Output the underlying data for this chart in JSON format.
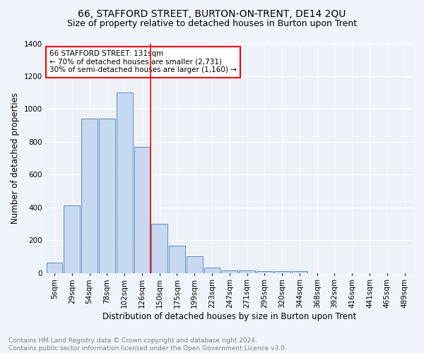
{
  "title1": "66, STAFFORD STREET, BURTON-ON-TRENT, DE14 2QU",
  "title2": "Size of property relative to detached houses in Burton upon Trent",
  "xlabel": "Distribution of detached houses by size in Burton upon Trent",
  "ylabel": "Number of detached properties",
  "footnote": "Contains HM Land Registry data © Crown copyright and database right 2024.\nContains public sector information licensed under the Open Government Licence v3.0.",
  "bar_labels": [
    "5sqm",
    "29sqm",
    "54sqm",
    "78sqm",
    "102sqm",
    "126sqm",
    "150sqm",
    "175sqm",
    "199sqm",
    "223sqm",
    "247sqm",
    "271sqm",
    "295sqm",
    "320sqm",
    "344sqm",
    "368sqm",
    "392sqm",
    "416sqm",
    "441sqm",
    "465sqm",
    "489sqm"
  ],
  "bar_heights": [
    65,
    410,
    940,
    940,
    1100,
    770,
    300,
    165,
    100,
    35,
    15,
    15,
    12,
    10,
    10,
    0,
    0,
    0,
    0,
    0,
    0
  ],
  "bar_color": "#c6d9f0",
  "bar_edge_color": "#5b8cc8",
  "vline_x": 5.5,
  "vline_color": "red",
  "annotation_text": "66 STAFFORD STREET: 131sqm\n← 70% of detached houses are smaller (2,731)\n30% of semi-detached houses are larger (1,160) →",
  "annotation_box_color": "white",
  "annotation_box_edge": "red",
  "ylim": [
    0,
    1400
  ],
  "bg_color": "#f0f4fb",
  "plot_bg_color": "#eef2f8",
  "grid_color": "white",
  "title1_fontsize": 10,
  "title2_fontsize": 9,
  "xlabel_fontsize": 8.5,
  "ylabel_fontsize": 8.5,
  "tick_fontsize": 7.5,
  "footnote_fontsize": 6.5
}
